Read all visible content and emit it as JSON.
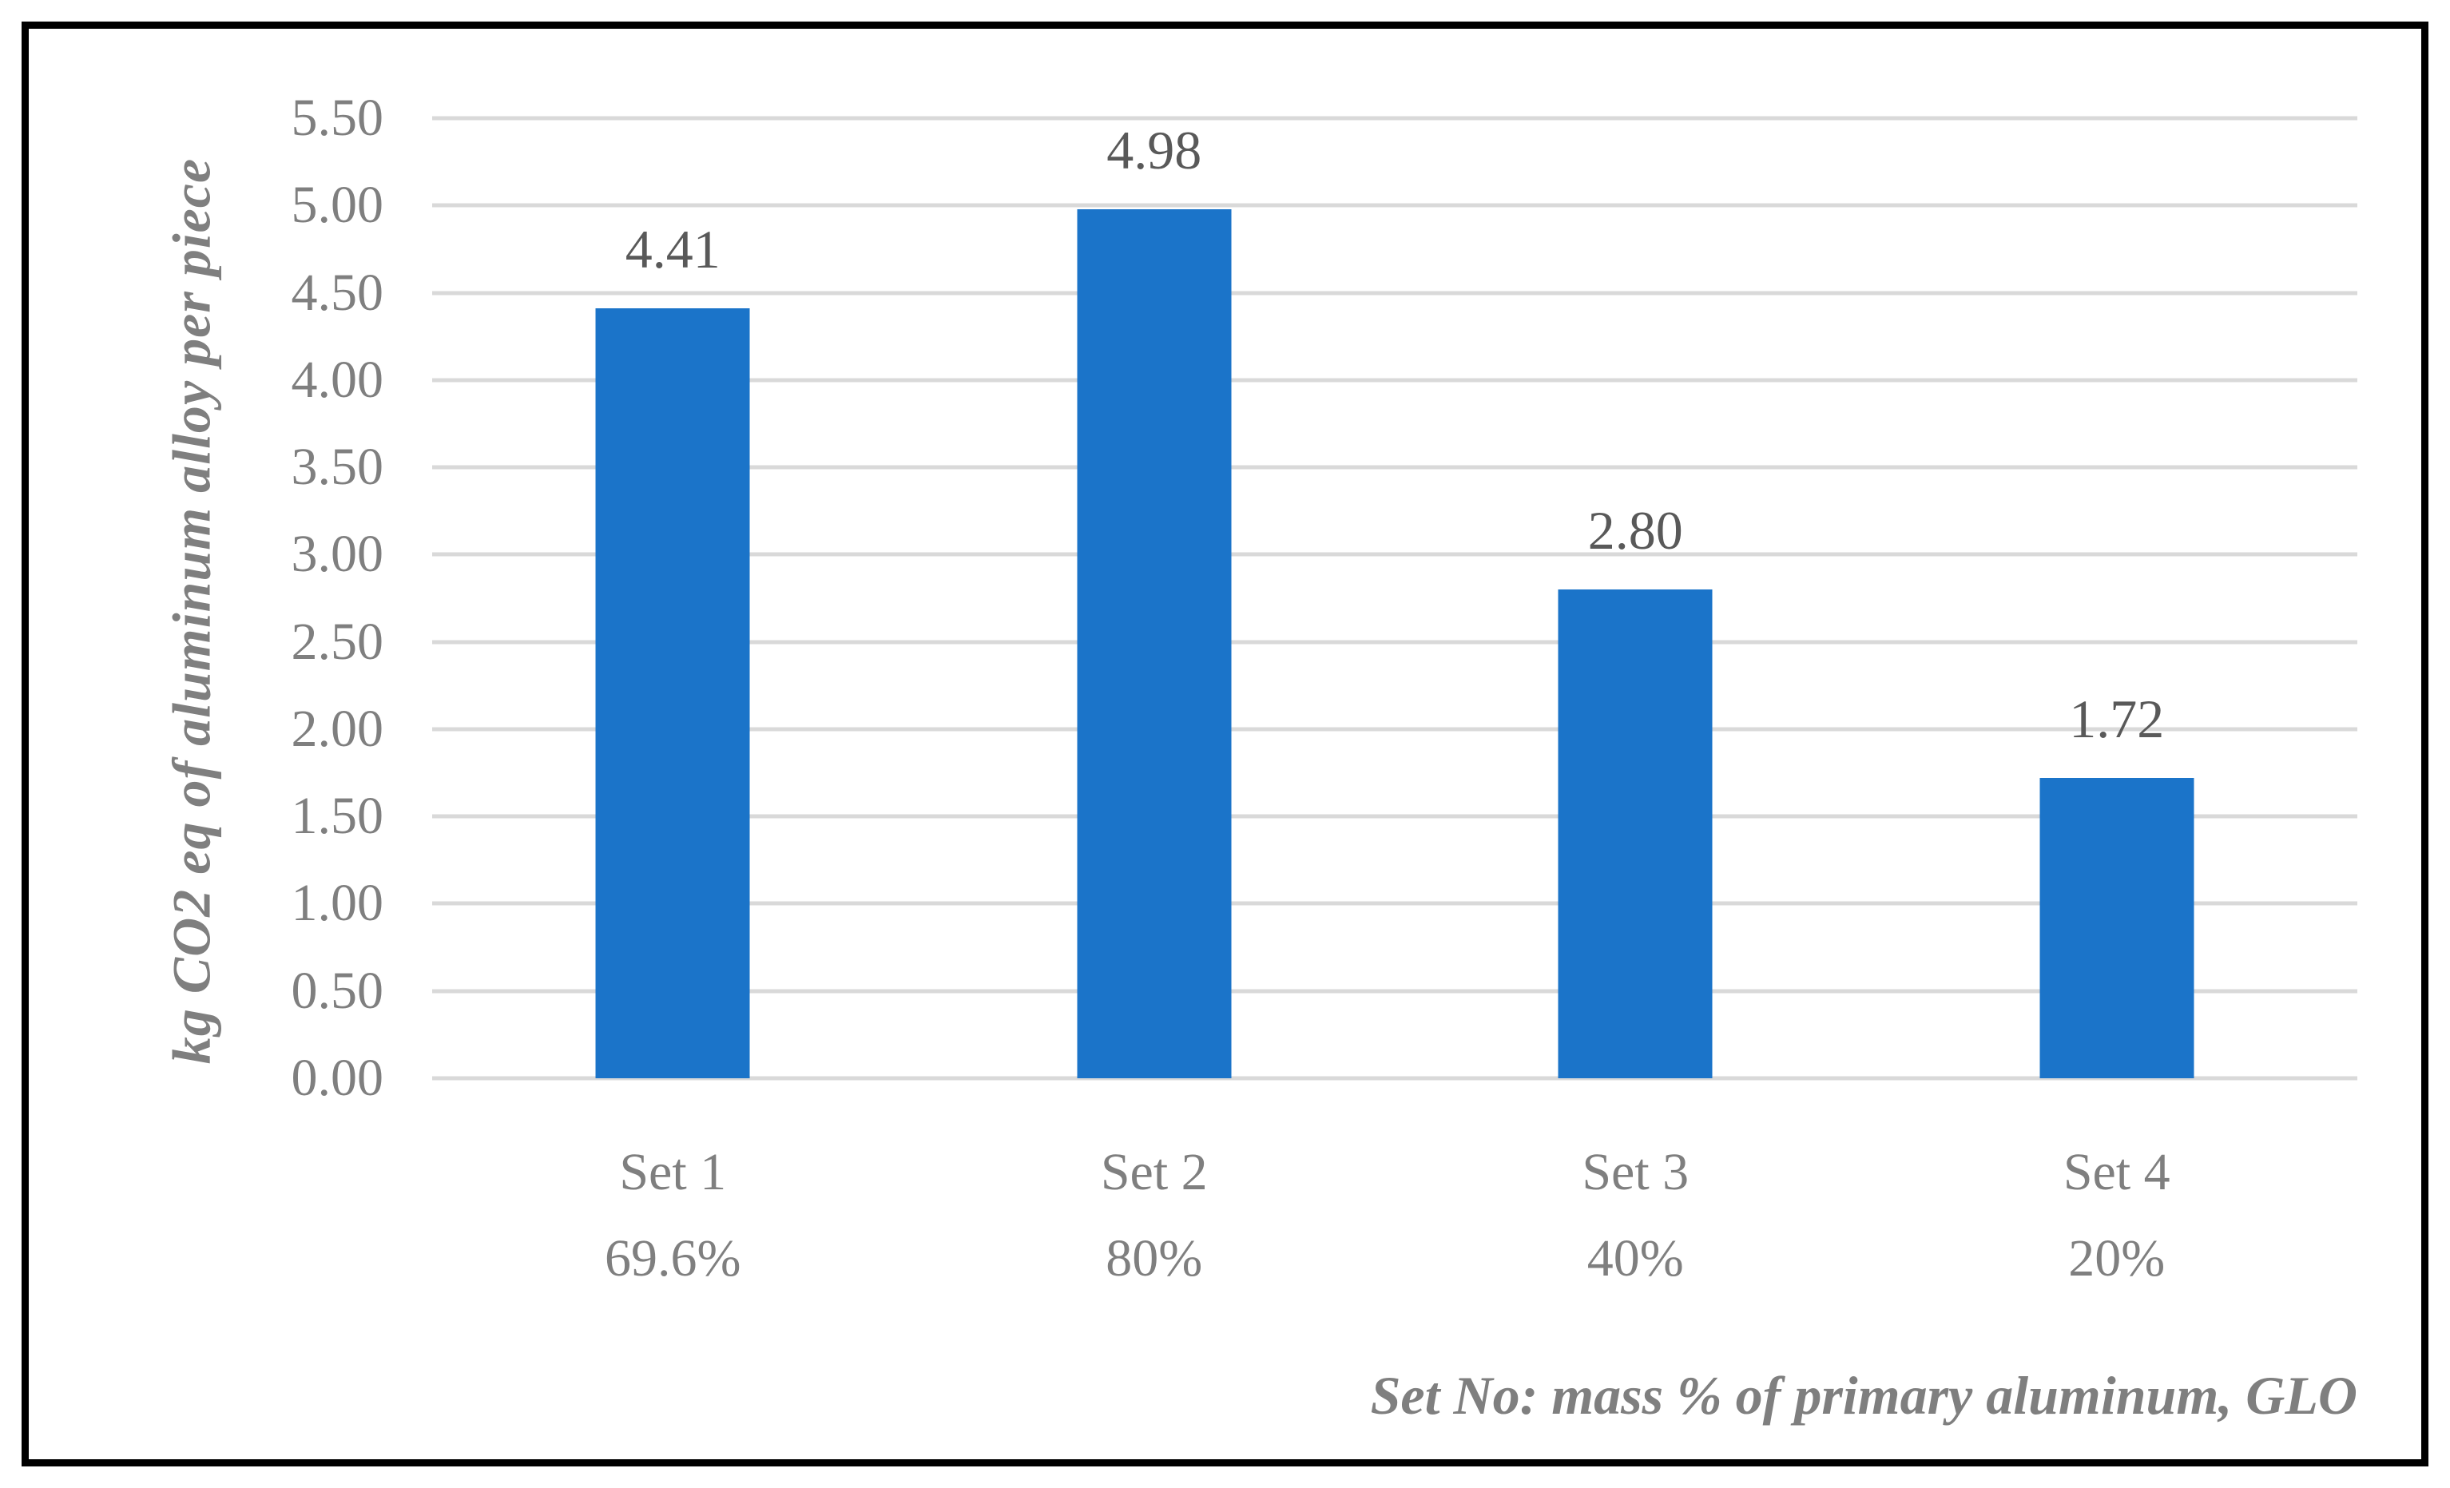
{
  "chart_data": {
    "type": "bar",
    "title": "",
    "ylabel": "kg CO2 eq of aluminum alloy per piece",
    "xlabel": "Set No: mass % of primary aluminum, GLO",
    "categories": [
      "Set 1",
      "Set 2",
      "Set 3",
      "Set 4"
    ],
    "category_sublabels": [
      "69.6%",
      "80%",
      "40%",
      "20%"
    ],
    "values": [
      4.41,
      4.98,
      2.8,
      1.72
    ],
    "data_labels": [
      "4.41",
      "4.98",
      "2.80",
      "1.72"
    ],
    "ylim": [
      0,
      5.5
    ],
    "ytick_step": 0.5,
    "yticks": [
      "5.50",
      "5.00",
      "4.50",
      "4.00",
      "3.50",
      "3.00",
      "2.50",
      "2.00",
      "1.50",
      "1.00",
      "0.50",
      "0.00"
    ],
    "grid": "horizontal-only",
    "legend": "none",
    "colors": {
      "bar": "#1B74C9",
      "gridline": "#D9D9D9",
      "data_label": "#595959",
      "axis_text": "#7F7F7F",
      "frame_border": "#000000",
      "background": "#FFFFFF"
    }
  }
}
